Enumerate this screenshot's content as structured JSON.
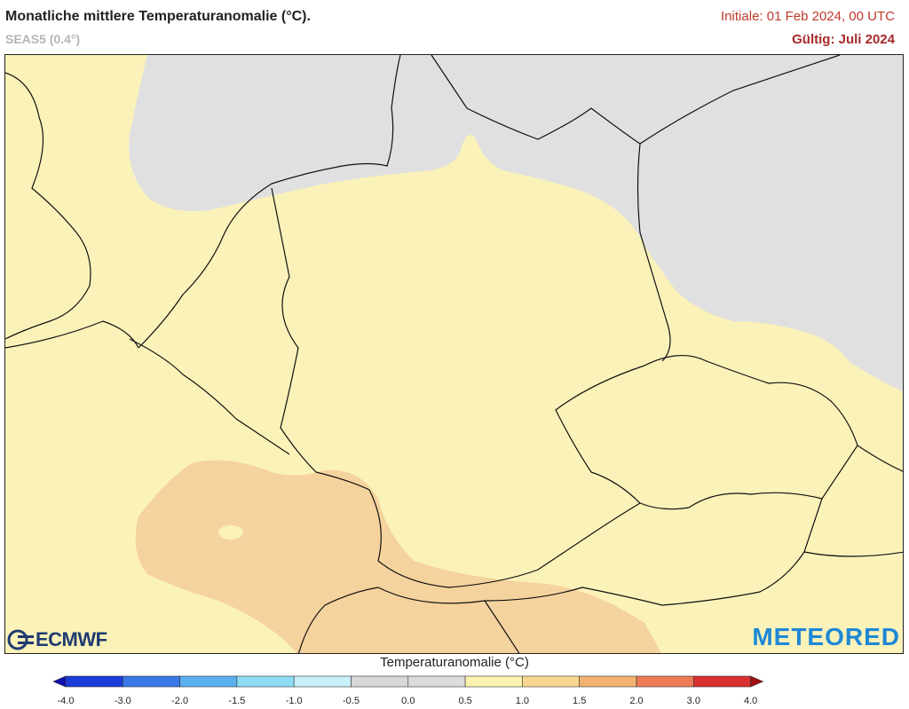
{
  "header": {
    "title": "Monatliche mittlere Temperaturanomalie (°C).",
    "subtitle": "SEAS5 (0.4°)",
    "init": "Initiale: 01 Feb 2024, 00 UTC",
    "valid": "Gültig: Juli 2024"
  },
  "logos": {
    "left": "ECMWF",
    "right": "METEORED"
  },
  "colorbar": {
    "title": "Temperaturanomalie (°C)",
    "ticks": [
      "-4.0",
      "-3.0",
      "-2.0",
      "-1.5",
      "-1.0",
      "-0.5",
      "0.0",
      "0.5",
      "1.0",
      "1.5",
      "2.0",
      "3.0",
      "4.0"
    ],
    "colors": [
      "#1a3cd8",
      "#3a78e8",
      "#5ab0ef",
      "#8fdcf5",
      "#c8f0f8",
      "#d8d8d8",
      "#dcdcdc",
      "#fbf2b0",
      "#f8d890",
      "#f2b270",
      "#eb7a55",
      "#d83030"
    ],
    "low_arrow": "#1010b0",
    "high_arrow": "#a01010"
  },
  "map": {
    "land_color": "#fbf2b9",
    "warm_color": "#f5d39e",
    "neutral_color": "#e0e0e0",
    "border_color": "#111111"
  }
}
